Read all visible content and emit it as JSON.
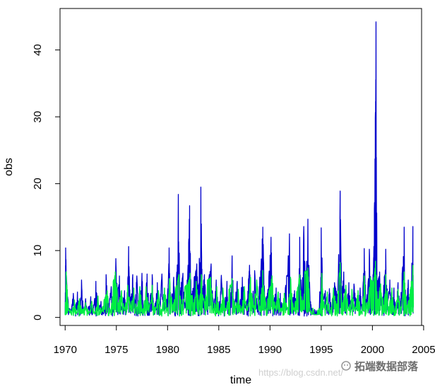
{
  "chart_data": {
    "type": "line",
    "title": "",
    "xlabel": "time",
    "ylabel": "obs",
    "xlim": [
      1969.5,
      2004.8
    ],
    "ylim": [
      -1.2,
      46.2
    ],
    "x_ticks": [
      1970,
      1975,
      1980,
      1985,
      1990,
      1995,
      2000,
      2005
    ],
    "x_tick_labels": [
      "1970",
      "1975",
      "1980",
      "1985",
      "1990",
      "1995",
      "2000",
      "2005"
    ],
    "y_ticks": [
      0,
      10,
      20,
      30,
      40
    ],
    "y_tick_labels": [
      "0",
      "10",
      "20",
      "30",
      "40"
    ],
    "grid": false,
    "legend": "none",
    "series": [
      {
        "color": "#0000cc",
        "x_start": 1970.0,
        "x_end": 2004.0,
        "points": [
          [
            1970.0,
            0.5
          ],
          [
            1970.05,
            10.4
          ],
          [
            1970.15,
            5.2
          ],
          [
            1970.3,
            2.4
          ],
          [
            1970.55,
            0.7
          ],
          [
            1970.8,
            3.6
          ],
          [
            1971.0,
            1.2
          ],
          [
            1971.2,
            3.8
          ],
          [
            1971.4,
            0.8
          ],
          [
            1971.6,
            5.6
          ],
          [
            1971.8,
            1.0
          ],
          [
            1972.0,
            2.8
          ],
          [
            1972.2,
            0.6
          ],
          [
            1972.5,
            3.1
          ],
          [
            1972.7,
            0.5
          ],
          [
            1973.0,
            5.4
          ],
          [
            1973.2,
            1.0
          ],
          [
            1973.5,
            2.4
          ],
          [
            1973.7,
            0.6
          ],
          [
            1974.0,
            6.4
          ],
          [
            1974.2,
            1.5
          ],
          [
            1974.5,
            4.6
          ],
          [
            1974.7,
            0.8
          ],
          [
            1974.95,
            8.8
          ],
          [
            1975.1,
            3.8
          ],
          [
            1975.3,
            6.2
          ],
          [
            1975.5,
            1.3
          ],
          [
            1975.8,
            4.0
          ],
          [
            1976.0,
            0.8
          ],
          [
            1976.2,
            10.6
          ],
          [
            1976.35,
            2.2
          ],
          [
            1976.6,
            6.4
          ],
          [
            1976.8,
            1.8
          ],
          [
            1977.0,
            6.2
          ],
          [
            1977.2,
            1.2
          ],
          [
            1977.5,
            6.6
          ],
          [
            1977.7,
            1.4
          ],
          [
            1978.0,
            6.5
          ],
          [
            1978.2,
            2.0
          ],
          [
            1978.5,
            6.4
          ],
          [
            1978.7,
            1.0
          ],
          [
            1979.0,
            5.2
          ],
          [
            1979.2,
            1.6
          ],
          [
            1979.45,
            6.5
          ],
          [
            1979.7,
            1.0
          ],
          [
            1980.0,
            3.5
          ],
          [
            1980.15,
            10.4
          ],
          [
            1980.3,
            2.2
          ],
          [
            1980.6,
            6.0
          ],
          [
            1980.8,
            1.2
          ],
          [
            1981.05,
            18.4
          ],
          [
            1981.2,
            4.0
          ],
          [
            1981.5,
            6.6
          ],
          [
            1981.7,
            1.4
          ],
          [
            1982.0,
            7.8
          ],
          [
            1982.15,
            16.7
          ],
          [
            1982.3,
            3.2
          ],
          [
            1982.6,
            6.0
          ],
          [
            1982.85,
            8.0
          ],
          [
            1983.0,
            3.6
          ],
          [
            1983.25,
            19.5
          ],
          [
            1983.4,
            4.2
          ],
          [
            1983.6,
            6.4
          ],
          [
            1983.8,
            1.6
          ],
          [
            1984.0,
            5.8
          ],
          [
            1984.25,
            8.0
          ],
          [
            1984.5,
            1.4
          ],
          [
            1984.75,
            5.6
          ],
          [
            1985.0,
            1.0
          ],
          [
            1985.25,
            6.3
          ],
          [
            1985.5,
            1.6
          ],
          [
            1985.8,
            5.4
          ],
          [
            1986.0,
            1.0
          ],
          [
            1986.3,
            9.2
          ],
          [
            1986.5,
            1.8
          ],
          [
            1986.8,
            5.4
          ],
          [
            1987.0,
            1.2
          ],
          [
            1987.3,
            6.0
          ],
          [
            1987.6,
            1.4
          ],
          [
            1987.9,
            5.6
          ],
          [
            1988.0,
            7.8
          ],
          [
            1988.2,
            1.6
          ],
          [
            1988.5,
            7.0
          ],
          [
            1988.8,
            1.2
          ],
          [
            1989.0,
            6.0
          ],
          [
            1989.3,
            13.5
          ],
          [
            1989.5,
            2.4
          ],
          [
            1989.8,
            4.2
          ],
          [
            1990.1,
            12.0
          ],
          [
            1990.3,
            2.2
          ],
          [
            1990.6,
            4.4
          ],
          [
            1990.8,
            1.0
          ],
          [
            1991.0,
            3.6
          ],
          [
            1991.3,
            1.0
          ],
          [
            1991.5,
            4.4
          ],
          [
            1991.9,
            12.5
          ],
          [
            1992.1,
            2.0
          ],
          [
            1992.4,
            4.0
          ],
          [
            1992.7,
            1.6
          ],
          [
            1992.9,
            12.0
          ],
          [
            1993.1,
            2.2
          ],
          [
            1993.3,
            13.6
          ],
          [
            1993.5,
            4.8
          ],
          [
            1993.7,
            14.7
          ],
          [
            1993.9,
            3.0
          ],
          [
            1994.1,
            1.0
          ],
          [
            1994.3,
            0.4
          ],
          [
            1994.8,
            0.5
          ],
          [
            1995.0,
            13.4
          ],
          [
            1995.2,
            2.6
          ],
          [
            1995.4,
            4.0
          ],
          [
            1995.6,
            1.0
          ],
          [
            1995.8,
            4.3
          ],
          [
            1996.0,
            1.2
          ],
          [
            1996.3,
            5.2
          ],
          [
            1996.6,
            3.2
          ],
          [
            1996.85,
            18.9
          ],
          [
            1997.0,
            4.0
          ],
          [
            1997.2,
            6.8
          ],
          [
            1997.4,
            1.4
          ],
          [
            1997.7,
            5.2
          ],
          [
            1997.9,
            1.0
          ],
          [
            1998.2,
            5.0
          ],
          [
            1998.5,
            1.4
          ],
          [
            1998.8,
            4.4
          ],
          [
            1999.0,
            1.0
          ],
          [
            1999.2,
            10.3
          ],
          [
            1999.4,
            2.0
          ],
          [
            1999.7,
            10.2
          ],
          [
            1999.9,
            3.6
          ],
          [
            2000.1,
            7.2
          ],
          [
            2000.25,
            23.7
          ],
          [
            2000.35,
            44.2
          ],
          [
            2000.45,
            5.0
          ],
          [
            2000.7,
            6.8
          ],
          [
            2000.9,
            2.0
          ],
          [
            2001.1,
            4.8
          ],
          [
            2001.3,
            10.2
          ],
          [
            2001.5,
            2.4
          ],
          [
            2001.7,
            5.6
          ],
          [
            2001.9,
            1.6
          ],
          [
            2002.1,
            4.4
          ],
          [
            2002.3,
            1.2
          ],
          [
            2002.5,
            5.2
          ],
          [
            2002.7,
            1.4
          ],
          [
            2002.9,
            6.6
          ],
          [
            2003.1,
            13.5
          ],
          [
            2003.3,
            2.0
          ],
          [
            2003.5,
            5.6
          ],
          [
            2003.7,
            1.2
          ],
          [
            2003.95,
            13.6
          ],
          [
            2004.0,
            2.0
          ]
        ]
      },
      {
        "color": "#00ee44",
        "x_start": 1970.0,
        "x_end": 2004.0,
        "points": [
          [
            1970.0,
            0.4
          ],
          [
            1970.1,
            6.8
          ],
          [
            1970.3,
            1.6
          ],
          [
            1970.6,
            0.5
          ],
          [
            1970.9,
            2.6
          ],
          [
            1971.1,
            0.8
          ],
          [
            1971.4,
            2.8
          ],
          [
            1971.7,
            0.6
          ],
          [
            1972.0,
            2.2
          ],
          [
            1972.3,
            0.5
          ],
          [
            1972.6,
            2.4
          ],
          [
            1972.9,
            0.5
          ],
          [
            1973.2,
            3.2
          ],
          [
            1973.5,
            0.6
          ],
          [
            1973.8,
            2.6
          ],
          [
            1974.1,
            4.0
          ],
          [
            1974.4,
            0.8
          ],
          [
            1974.7,
            5.4
          ],
          [
            1974.9,
            6.8
          ],
          [
            1975.2,
            2.2
          ],
          [
            1975.5,
            4.0
          ],
          [
            1975.8,
            1.0
          ],
          [
            1976.1,
            4.8
          ],
          [
            1976.4,
            1.4
          ],
          [
            1976.7,
            4.4
          ],
          [
            1977.0,
            1.2
          ],
          [
            1977.3,
            4.6
          ],
          [
            1977.6,
            1.0
          ],
          [
            1977.9,
            4.6
          ],
          [
            1978.2,
            1.4
          ],
          [
            1978.5,
            4.8
          ],
          [
            1978.8,
            1.0
          ],
          [
            1979.1,
            4.0
          ],
          [
            1979.4,
            1.2
          ],
          [
            1979.7,
            4.4
          ],
          [
            1980.0,
            1.0
          ],
          [
            1980.2,
            5.8
          ],
          [
            1980.5,
            1.6
          ],
          [
            1980.8,
            4.4
          ],
          [
            1981.1,
            6.4
          ],
          [
            1981.4,
            1.8
          ],
          [
            1981.7,
            4.6
          ],
          [
            1982.0,
            5.2
          ],
          [
            1982.2,
            6.6
          ],
          [
            1982.5,
            1.8
          ],
          [
            1982.8,
            5.4
          ],
          [
            1983.1,
            2.0
          ],
          [
            1983.3,
            6.4
          ],
          [
            1983.6,
            2.0
          ],
          [
            1983.9,
            5.6
          ],
          [
            1984.2,
            6.0
          ],
          [
            1984.5,
            1.2
          ],
          [
            1984.8,
            4.6
          ],
          [
            1985.1,
            0.8
          ],
          [
            1985.4,
            4.4
          ],
          [
            1985.7,
            1.0
          ],
          [
            1986.0,
            4.2
          ],
          [
            1986.3,
            5.8
          ],
          [
            1986.6,
            1.2
          ],
          [
            1986.9,
            4.2
          ],
          [
            1987.2,
            1.0
          ],
          [
            1987.5,
            4.6
          ],
          [
            1987.8,
            1.0
          ],
          [
            1988.1,
            6.0
          ],
          [
            1988.4,
            1.4
          ],
          [
            1988.7,
            5.6
          ],
          [
            1989.0,
            1.2
          ],
          [
            1989.3,
            7.0
          ],
          [
            1989.6,
            1.8
          ],
          [
            1989.9,
            4.0
          ],
          [
            1990.2,
            6.2
          ],
          [
            1990.5,
            1.4
          ],
          [
            1990.8,
            3.8
          ],
          [
            1991.1,
            0.8
          ],
          [
            1991.4,
            3.6
          ],
          [
            1991.7,
            1.2
          ],
          [
            1992.0,
            6.0
          ],
          [
            1992.3,
            1.2
          ],
          [
            1992.6,
            3.8
          ],
          [
            1992.9,
            6.4
          ],
          [
            1993.2,
            1.6
          ],
          [
            1993.4,
            6.8
          ],
          [
            1993.7,
            7.4
          ],
          [
            1993.9,
            1.4
          ],
          [
            1994.1,
            0.5
          ],
          [
            1994.5,
            0.4
          ],
          [
            1994.9,
            0.6
          ],
          [
            1995.05,
            6.6
          ],
          [
            1995.3,
            1.4
          ],
          [
            1995.6,
            3.8
          ],
          [
            1995.9,
            0.8
          ],
          [
            1996.2,
            4.4
          ],
          [
            1996.5,
            1.6
          ],
          [
            1996.85,
            8.2
          ],
          [
            1997.1,
            2.2
          ],
          [
            1997.4,
            4.8
          ],
          [
            1997.7,
            1.0
          ],
          [
            1998.0,
            4.2
          ],
          [
            1998.3,
            1.0
          ],
          [
            1998.6,
            4.0
          ],
          [
            1998.9,
            0.8
          ],
          [
            1999.2,
            6.2
          ],
          [
            1999.5,
            1.4
          ],
          [
            1999.8,
            6.0
          ],
          [
            2000.1,
            5.2
          ],
          [
            2000.3,
            8.4
          ],
          [
            2000.5,
            2.4
          ],
          [
            2000.8,
            5.0
          ],
          [
            2001.1,
            1.6
          ],
          [
            2001.3,
            6.4
          ],
          [
            2001.6,
            1.6
          ],
          [
            2001.9,
            4.4
          ],
          [
            2002.2,
            1.0
          ],
          [
            2002.5,
            4.2
          ],
          [
            2002.8,
            1.0
          ],
          [
            2003.1,
            6.8
          ],
          [
            2003.4,
            1.4
          ],
          [
            2003.7,
            4.2
          ],
          [
            2003.95,
            7.8
          ],
          [
            2004.0,
            1.6
          ]
        ]
      }
    ]
  },
  "watermark": {
    "url_text": "https://blog.csdn.net/",
    "brand_text": "拓端数据部落"
  }
}
